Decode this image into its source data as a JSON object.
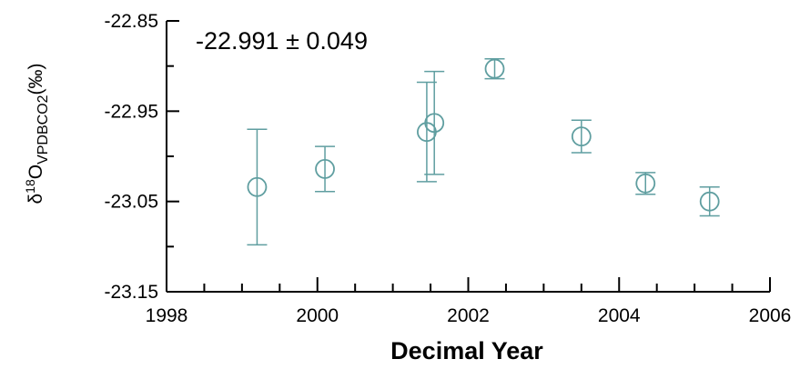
{
  "chart_data": {
    "type": "scatter",
    "title": "",
    "xlabel": "Decimal Year",
    "ylabel": {
      "prefix": "δ",
      "sup": "18",
      "main": "O",
      "sub": "VPDBCO2",
      "suffix": "(‰)"
    },
    "annotation": "-22.991 ± 0.049",
    "xlim": [
      1998,
      2006
    ],
    "ylim": [
      -23.15,
      -22.85
    ],
    "xticks": [
      1998,
      2000,
      2002,
      2004,
      2006
    ],
    "xtick_labels": [
      "1998",
      "2000",
      "2002",
      "2004",
      "2006"
    ],
    "yticks": [
      -22.85,
      -22.95,
      -23.05,
      -23.15
    ],
    "ytick_labels": [
      "-22.85",
      "-22.95",
      "-23.05",
      "-23.15"
    ],
    "grid": false,
    "marker": "open-circle",
    "color": "#5f9ea0",
    "series": [
      {
        "points": [
          {
            "x": 1999.2,
            "y": -23.034,
            "err": 0.064
          },
          {
            "x": 2000.1,
            "y": -23.014,
            "err": 0.025
          },
          {
            "x": 2001.45,
            "y": -22.973,
            "err": 0.055
          },
          {
            "x": 2001.55,
            "y": -22.963,
            "err": 0.057
          },
          {
            "x": 2002.35,
            "y": -22.903,
            "err": 0.011
          },
          {
            "x": 2003.5,
            "y": -22.978,
            "err": 0.018
          },
          {
            "x": 2004.35,
            "y": -23.03,
            "err": 0.012
          },
          {
            "x": 2005.2,
            "y": -23.05,
            "err": 0.016
          }
        ]
      }
    ]
  }
}
